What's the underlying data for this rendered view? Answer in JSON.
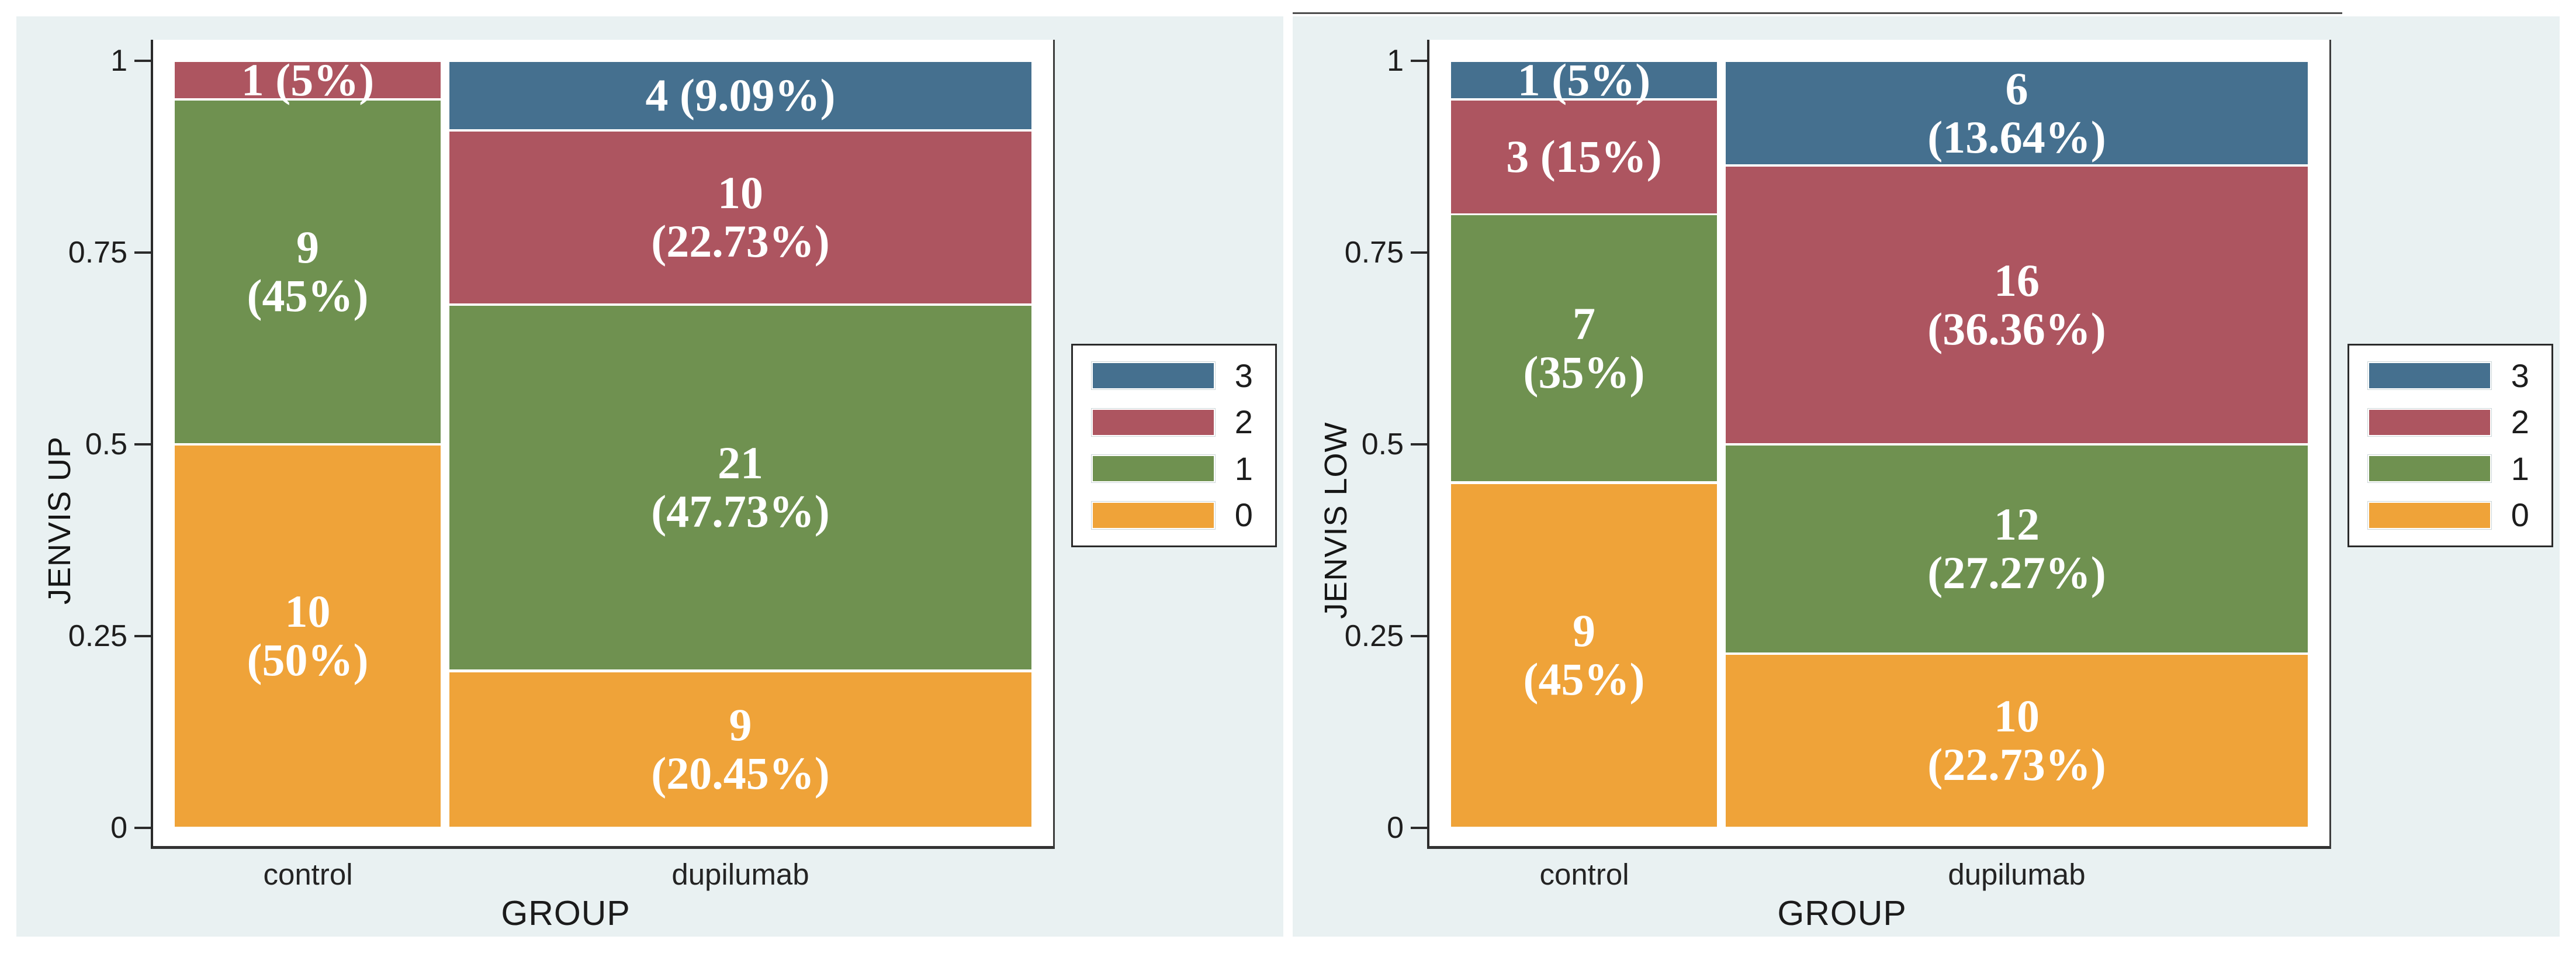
{
  "figure": {
    "description": "Two spineplot stacked bar charts of JENVIS scores by GROUP",
    "panel_background": "#e9f1f2",
    "plot_background": "#ffffff"
  },
  "axis": {
    "ytick_labels": [
      "1",
      "0.75",
      "0.5",
      "0.25",
      "0"
    ]
  },
  "chart_data": [
    {
      "type": "bar",
      "subtype": "spineplot_stacked",
      "title": "",
      "xlabel": "GROUP",
      "ylabel": "JENVIS UP",
      "ylim": [
        0,
        1
      ],
      "yticks": [
        1,
        0.75,
        0.5,
        0.25,
        0
      ],
      "ytick_labels": [
        "1",
        "0.75",
        "0.5",
        "0.25",
        "0"
      ],
      "grid": false,
      "legend_position": "right-outside",
      "categories": [
        "control",
        "dupilumab"
      ],
      "column_totals": [
        20,
        44
      ],
      "column_width_fractions": [
        0.3125,
        0.6875
      ],
      "series": [
        {
          "name": "3",
          "color": "#45708f",
          "counts": [
            0,
            4
          ],
          "fractions": [
            0,
            0.0909
          ],
          "label_lines": [
            [],
            [
              "4 (9.09%)"
            ]
          ]
        },
        {
          "name": "2",
          "color": "#ad5560",
          "counts": [
            1,
            10
          ],
          "fractions": [
            0.05,
            0.2273
          ],
          "label_lines": [
            [
              "1 (5%)"
            ],
            [
              "10",
              "(22.73%)"
            ]
          ]
        },
        {
          "name": "1",
          "color": "#6f9150",
          "counts": [
            9,
            21
          ],
          "fractions": [
            0.45,
            0.4773
          ],
          "label_lines": [
            [
              "9",
              "(45%)"
            ],
            [
              "21",
              "(47.73%)"
            ]
          ]
        },
        {
          "name": "0",
          "color": "#efa339",
          "counts": [
            10,
            9
          ],
          "fractions": [
            0.5,
            0.2045
          ],
          "label_lines": [
            [
              "10",
              "(50%)"
            ],
            [
              "9",
              "(20.45%)"
            ]
          ]
        }
      ]
    },
    {
      "type": "bar",
      "subtype": "spineplot_stacked",
      "title": "",
      "xlabel": "GROUP",
      "ylabel": "JENVIS LOW",
      "ylim": [
        0,
        1
      ],
      "yticks": [
        1,
        0.75,
        0.5,
        0.25,
        0
      ],
      "ytick_labels": [
        "1",
        "0.75",
        "0.5",
        "0.25",
        "0"
      ],
      "grid": false,
      "legend_position": "right-outside",
      "categories": [
        "control",
        "dupilumab"
      ],
      "column_totals": [
        20,
        44
      ],
      "column_width_fractions": [
        0.3125,
        0.6875
      ],
      "series": [
        {
          "name": "3",
          "color": "#45708f",
          "counts": [
            1,
            6
          ],
          "fractions": [
            0.05,
            0.1364
          ],
          "label_lines": [
            [
              "1 (5%)"
            ],
            [
              "6",
              "(13.64%)"
            ]
          ]
        },
        {
          "name": "2",
          "color": "#ad5560",
          "counts": [
            3,
            16
          ],
          "fractions": [
            0.15,
            0.3636
          ],
          "label_lines": [
            [
              "3 (15%)"
            ],
            [
              "16",
              "(36.36%)"
            ]
          ]
        },
        {
          "name": "1",
          "color": "#6f9150",
          "counts": [
            7,
            12
          ],
          "fractions": [
            0.35,
            0.2727
          ],
          "label_lines": [
            [
              "7",
              "(35%)"
            ],
            [
              "12",
              "(27.27%)"
            ]
          ]
        },
        {
          "name": "0",
          "color": "#efa339",
          "counts": [
            9,
            10
          ],
          "fractions": [
            0.45,
            0.2273
          ],
          "label_lines": [
            [
              "9",
              "(45%)"
            ],
            [
              "10",
              "(22.73%)"
            ]
          ]
        }
      ]
    }
  ]
}
